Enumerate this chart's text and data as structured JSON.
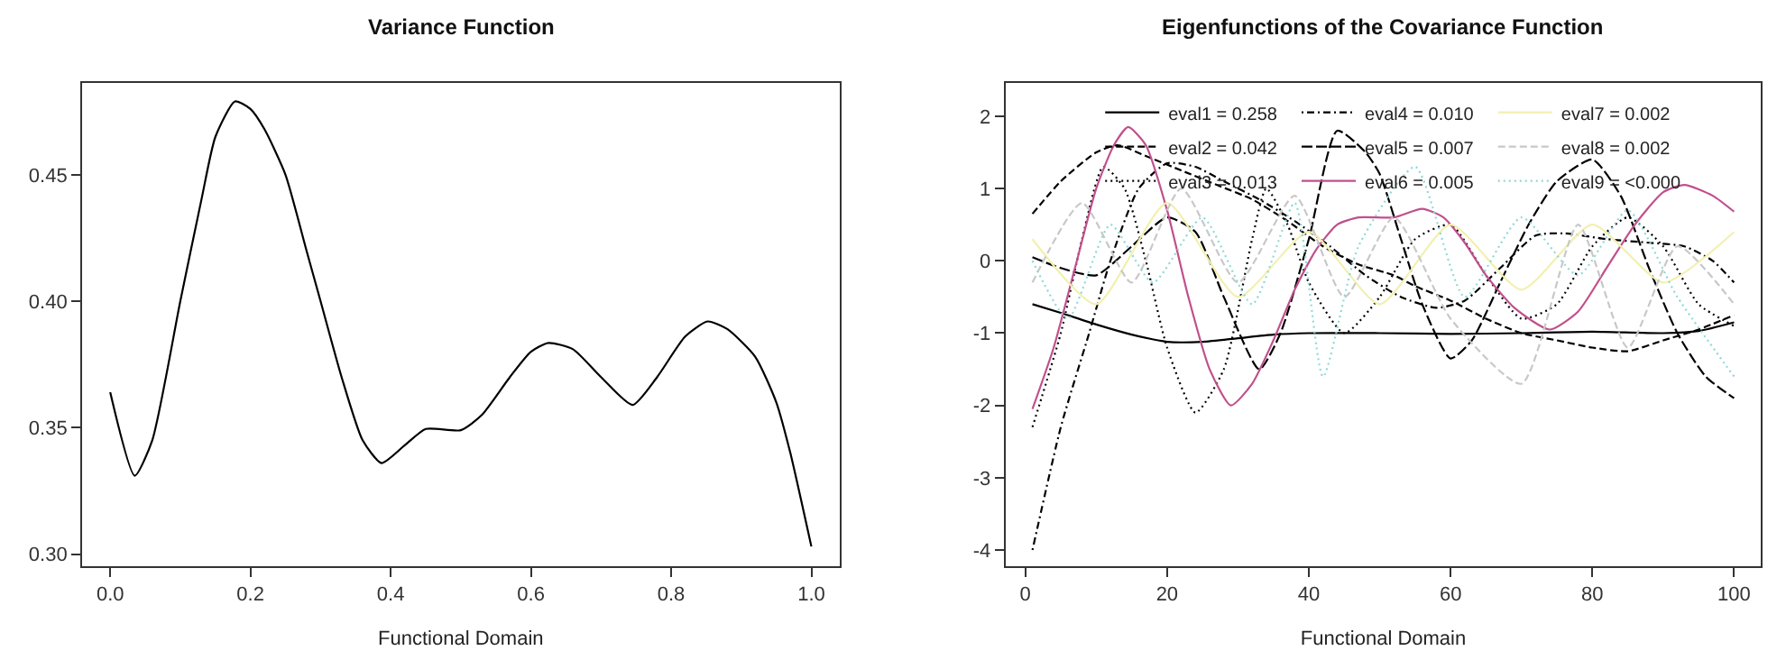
{
  "chart_data": [
    {
      "type": "line",
      "title": "Variance Function",
      "xlabel": "Functional Domain",
      "xlim": [
        -0.04,
        1.04
      ],
      "ylim": [
        0.2953,
        0.4863
      ],
      "xticks": [
        {
          "value": 0,
          "label": "0.0"
        },
        0.2,
        0.4,
        0.6,
        0.8,
        {
          "value": 1,
          "label": "1.0"
        }
      ],
      "yticks": [
        {
          "value": 0.3,
          "label": "0.30"
        },
        0.35,
        {
          "value": 0.4,
          "label": "0.40"
        },
        0.45
      ],
      "grid": false,
      "legend": false,
      "x": [
        0,
        0.035,
        0.06,
        0.1,
        0.13,
        0.15,
        0.178,
        0.2,
        0.22,
        0.25,
        0.28,
        0.3,
        0.33,
        0.36,
        0.387,
        0.42,
        0.45,
        0.5,
        0.53,
        0.57,
        0.6,
        0.625,
        0.66,
        0.7,
        0.745,
        0.78,
        0.82,
        0.852,
        0.88,
        0.92,
        0.95,
        0.97,
        1.0
      ],
      "series": [
        {
          "color": "#000000",
          "line_style": "solid",
          "values": [
            0.364,
            0.331,
            0.345,
            0.4,
            0.44,
            0.465,
            0.479,
            0.476,
            0.468,
            0.45,
            0.42,
            0.4,
            0.37,
            0.345,
            0.336,
            0.343,
            0.3495,
            0.349,
            0.355,
            0.37,
            0.38,
            0.3835,
            0.381,
            0.37,
            0.359,
            0.37,
            0.386,
            0.392,
            0.389,
            0.378,
            0.36,
            0.34,
            0.303
          ]
        }
      ]
    },
    {
      "type": "line",
      "title": "Eigenfunctions of the Covariance Function",
      "xlabel": "Functional Domain",
      "xlim": [
        -2.8,
        103.8
      ],
      "ylim": [
        -4.22,
        2.46
      ],
      "xticks": [
        0,
        20,
        40,
        60,
        80,
        100
      ],
      "yticks": [
        -4,
        -3,
        -2,
        -1,
        0,
        1,
        2
      ],
      "grid": false,
      "legend": "top",
      "series": [
        {
          "name": "eval1 = 0.258",
          "color": "#000000",
          "line_style": "solid",
          "x": [
            1,
            5,
            10,
            15,
            20,
            25,
            30,
            35,
            40,
            50,
            60,
            70,
            80,
            90,
            95,
            100
          ],
          "values": [
            -0.6,
            -0.72,
            -0.88,
            -1.02,
            -1.12,
            -1.12,
            -1.07,
            -1.02,
            -1.0,
            -1.0,
            -1.01,
            -1.0,
            -0.98,
            -1.0,
            -0.97,
            -0.85
          ]
        },
        {
          "name": "eval2 = 0.042",
          "color": "#000000",
          "line_style": "dashed",
          "x": [
            1,
            5,
            10,
            13,
            17,
            22,
            27,
            32,
            37,
            42,
            47,
            52,
            55,
            60,
            65,
            70,
            75,
            80,
            85,
            90,
            95,
            100
          ],
          "values": [
            0.65,
            1.1,
            1.5,
            1.6,
            1.45,
            1.25,
            1.05,
            0.85,
            0.55,
            0.2,
            -0.05,
            -0.2,
            -0.35,
            -0.55,
            -0.8,
            -1.0,
            -1.1,
            -1.2,
            -1.25,
            -1.1,
            -0.95,
            -0.75
          ]
        },
        {
          "name": "eval3 = 0.013",
          "color": "#000000",
          "line_style": "dotted",
          "x": [
            1,
            5,
            8,
            11,
            14,
            17,
            20,
            24,
            28,
            32,
            34,
            37,
            40,
            45,
            50,
            55,
            60,
            65,
            70,
            75,
            80,
            85,
            90,
            95,
            100
          ],
          "values": [
            -2.3,
            -1.0,
            0.3,
            1.3,
            1.0,
            0.0,
            -1.2,
            -2.1,
            -1.5,
            0.3,
            1.0,
            0.5,
            -0.3,
            -1.0,
            -0.5,
            0.3,
            0.5,
            -0.2,
            -0.8,
            -0.6,
            0.2,
            0.6,
            0.2,
            -0.6,
            -0.9
          ]
        },
        {
          "name": "eval4 = 0.010",
          "color": "#000000",
          "line_style": "dashdot",
          "x": [
            1,
            5,
            9,
            12,
            16,
            20,
            24,
            28,
            33,
            38,
            43,
            48,
            53,
            58,
            62,
            67,
            72,
            76,
            82,
            88,
            93,
            97,
            100
          ],
          "values": [
            -4.0,
            -2.3,
            -1.0,
            0.0,
            1.0,
            1.35,
            1.3,
            1.1,
            0.85,
            0.55,
            0.2,
            -0.2,
            -0.5,
            -0.65,
            -0.55,
            -0.1,
            0.35,
            0.38,
            0.3,
            0.25,
            0.2,
            0.0,
            -0.3
          ]
        },
        {
          "name": "eval5 = 0.007",
          "color": "#000000",
          "line_style": "longdash",
          "x": [
            1,
            5,
            10,
            15,
            20,
            24,
            28,
            33,
            36,
            40,
            44,
            48,
            50,
            53,
            56,
            60,
            63,
            67,
            71,
            75,
            80,
            84,
            88,
            92,
            96,
            100
          ],
          "values": [
            0.05,
            -0.1,
            -0.2,
            0.2,
            0.6,
            0.4,
            -0.5,
            -1.5,
            -1.0,
            0.3,
            1.8,
            1.5,
            1.2,
            0.3,
            -0.6,
            -1.35,
            -1.1,
            -0.3,
            0.5,
            1.1,
            1.4,
            0.9,
            -0.1,
            -1.0,
            -1.6,
            -1.9
          ]
        },
        {
          "name": "eval6 = 0.005",
          "color": "#c0508c",
          "line_style": "solid",
          "x": [
            1,
            4,
            7,
            10,
            12.5,
            14.5,
            17,
            20,
            23,
            26,
            29,
            32,
            35,
            38,
            41,
            44,
            47,
            52,
            56,
            59,
            62,
            65,
            69,
            74,
            78,
            82,
            86,
            90,
            93,
            97,
            100
          ],
          "values": [
            -2.05,
            -1.2,
            -0.1,
            1.0,
            1.6,
            1.85,
            1.6,
            0.7,
            -0.5,
            -1.5,
            -2.0,
            -1.7,
            -1.1,
            -0.4,
            0.15,
            0.5,
            0.6,
            0.6,
            0.72,
            0.6,
            0.25,
            -0.2,
            -0.65,
            -0.95,
            -0.7,
            -0.1,
            0.5,
            0.95,
            1.05,
            0.9,
            0.68
          ]
        },
        {
          "name": "eval7 = 0.002",
          "color": "#f2f0b0",
          "line_style": "solid",
          "x": [
            1,
            10,
            20,
            30,
            40,
            50,
            60,
            70,
            80,
            90,
            100
          ],
          "values": [
            0.3,
            -0.6,
            0.8,
            -0.5,
            0.4,
            -0.6,
            0.5,
            -0.4,
            0.5,
            -0.3,
            0.4
          ]
        },
        {
          "name": "eval8 = 0.002",
          "color": "#c8c8c8",
          "line_style": "dashed",
          "x": [
            1,
            8,
            15,
            22,
            30,
            38,
            45,
            52,
            60,
            70,
            78,
            85,
            92,
            100
          ],
          "values": [
            -0.3,
            0.8,
            -0.3,
            1.0,
            -0.3,
            0.9,
            -0.5,
            0.6,
            -0.8,
            -1.7,
            0.5,
            -1.2,
            0.2,
            -0.6
          ]
        },
        {
          "name": "eval9 = <0.000",
          "color": "#8fd8d8",
          "line_style": "dotted",
          "x": [
            1,
            6,
            12,
            18,
            25,
            32,
            38,
            42,
            47,
            55,
            62,
            70,
            78,
            85,
            92,
            100
          ],
          "values": [
            0.0,
            -0.8,
            0.5,
            -0.3,
            0.6,
            -0.6,
            0.8,
            -1.6,
            0.2,
            1.3,
            -0.5,
            0.6,
            -0.2,
            0.7,
            -0.5,
            -1.6
          ]
        }
      ]
    }
  ]
}
